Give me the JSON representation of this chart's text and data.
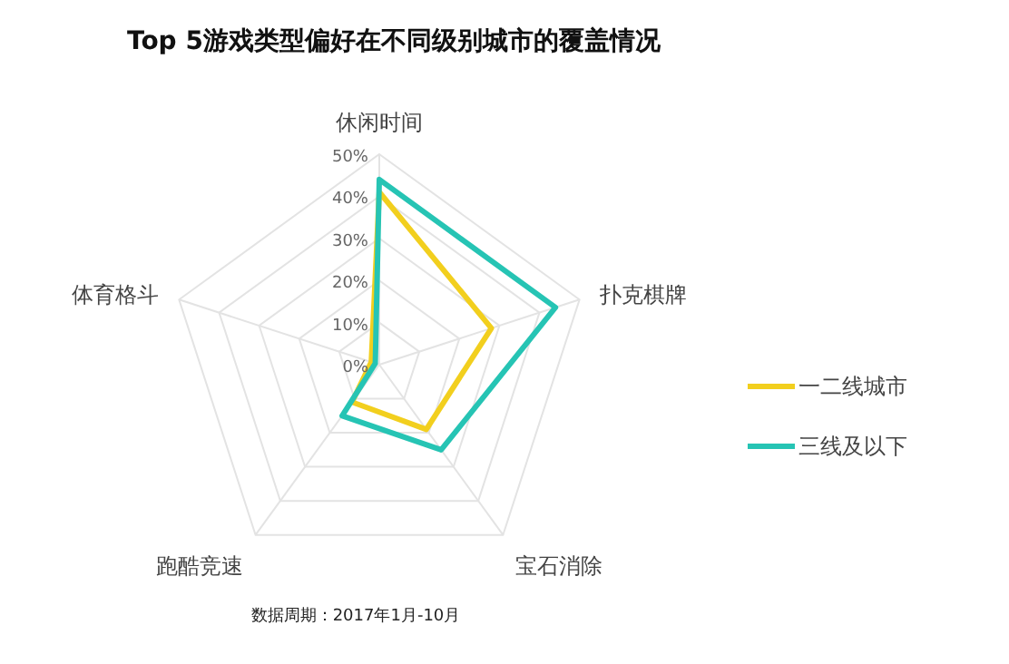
{
  "chart_data": {
    "type": "radar",
    "title": "Top 5游戏类型偏好在不同级别城市的覆盖情况",
    "categories": [
      "休闲时间",
      "扑克棋牌",
      "宝石消除",
      "跑酷竞速",
      "体育格斗"
    ],
    "series": [
      {
        "name": "一二线城市",
        "color": "#f2cf1e",
        "values": [
          41,
          28,
          19,
          11,
          2
        ]
      },
      {
        "name": "三线及以下",
        "color": "#26c4b4",
        "values": [
          44,
          44,
          25,
          15,
          1
        ]
      }
    ],
    "ylim": [
      0,
      50
    ],
    "yticks": [
      {
        "value": 0,
        "label": "0%"
      },
      {
        "value": 10,
        "label": "10%"
      },
      {
        "value": 20,
        "label": "20%"
      },
      {
        "value": 30,
        "label": "30%"
      },
      {
        "value": 40,
        "label": "40%"
      },
      {
        "value": 50,
        "label": "50%"
      }
    ],
    "grid": true,
    "legend": "right",
    "annotations": [
      "数据周期：2017年1月-10月"
    ]
  }
}
